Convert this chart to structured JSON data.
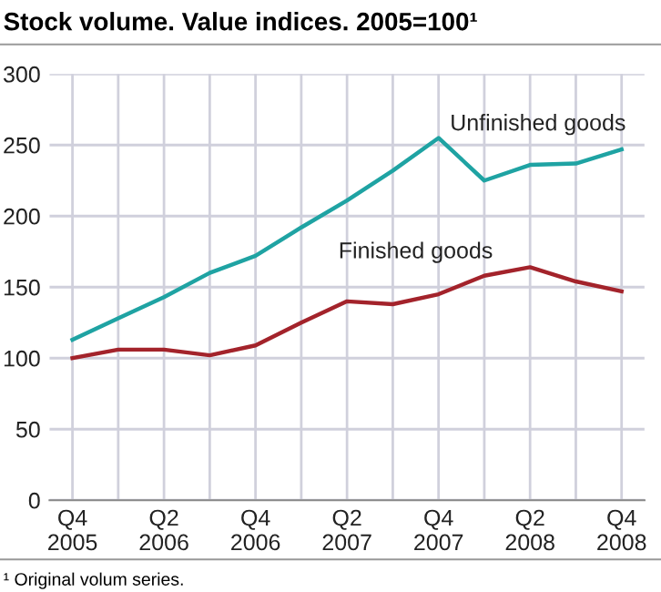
{
  "chart_data": {
    "type": "line",
    "title": "Stock volume. Value indices. 2005=100¹",
    "categories": [
      "Q4\n2005",
      null,
      "Q2\n2006",
      null,
      "Q4\n2006",
      null,
      "Q2\n2007",
      null,
      "Q4\n2007",
      null,
      "Q2\n2008",
      null,
      "Q4\n2008"
    ],
    "series": [
      {
        "name": "Unfinished goods",
        "color": "#1fa3a3",
        "values": [
          113,
          128,
          143,
          160,
          172,
          192,
          211,
          232,
          255,
          225,
          236,
          237,
          247
        ]
      },
      {
        "name": "Finished goods",
        "color": "#a3232b",
        "values": [
          100,
          106,
          106,
          102,
          109,
          125,
          140,
          138,
          145,
          158,
          164,
          154,
          147
        ]
      }
    ],
    "ylim": [
      0,
      300
    ],
    "yticks": [
      0,
      50,
      100,
      150,
      200,
      250,
      300
    ],
    "grid": true,
    "legend": false,
    "marker": "none",
    "line_style": "solid",
    "annotations": [
      "¹ Original volum series."
    ]
  }
}
